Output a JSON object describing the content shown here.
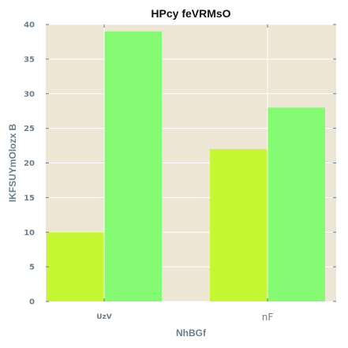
{
  "chart_data": {
    "type": "bar",
    "title": "HPcy feVRMsO",
    "xlabel": "NhBGf",
    "ylabel": "IKFSUYmOlozx B",
    "categories": [
      "UzV",
      "nF"
    ],
    "series": [
      {
        "values": [
          10,
          22
        ]
      },
      {
        "values": [
          39,
          28
        ]
      }
    ],
    "ylim": [
      0,
      40
    ],
    "yticks": [
      "0",
      "5",
      "10",
      "15",
      "20",
      "25",
      "30",
      "35",
      "40"
    ],
    "grid": true,
    "legend": "none"
  },
  "colors": {
    "background": "#ede6d5",
    "grid": "#ffffff",
    "series": [
      "#c6f733",
      "#84fb73"
    ],
    "tick_mark": "#6b7f8c"
  }
}
